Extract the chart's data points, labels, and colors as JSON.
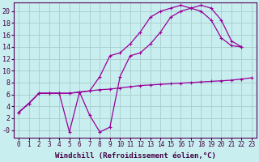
{
  "background_color": "#c8eef0",
  "grid_color": "#aacccc",
  "line_color": "#990099",
  "xlabel": "Windchill (Refroidissement éolien,°C)",
  "xlabel_fontsize": 6.5,
  "xtick_fontsize": 5.5,
  "ytick_fontsize": 6.0,
  "ylim": [
    -1.2,
    21.5
  ],
  "xlim": [
    -0.5,
    23.5
  ],
  "yticks": [
    0,
    2,
    4,
    6,
    8,
    10,
    12,
    14,
    16,
    18,
    20
  ],
  "ytick_labels": [
    "-0",
    "2",
    "4",
    "6",
    "8",
    "10",
    "12",
    "14",
    "16",
    "18",
    "20"
  ],
  "xticks": [
    0,
    1,
    2,
    3,
    4,
    5,
    6,
    7,
    8,
    9,
    10,
    11,
    12,
    13,
    14,
    15,
    16,
    17,
    18,
    19,
    20,
    21,
    22,
    23
  ],
  "line1_x": [
    0,
    1,
    2,
    3,
    4,
    5,
    6,
    7,
    8,
    9,
    10,
    11,
    12,
    13,
    14,
    15,
    16,
    17,
    18,
    19,
    20,
    21,
    22,
    23
  ],
  "line1_y": [
    3.0,
    4.5,
    6.2,
    6.2,
    6.2,
    6.2,
    6.4,
    6.6,
    6.8,
    6.9,
    7.1,
    7.3,
    7.5,
    7.6,
    7.7,
    7.8,
    7.9,
    8.0,
    8.1,
    8.2,
    8.3,
    8.4,
    8.6,
    8.8
  ],
  "line2_x": [
    0,
    1,
    2,
    3,
    4,
    5,
    6,
    7,
    8,
    9,
    10,
    11,
    12,
    13,
    14,
    15,
    16,
    17,
    18,
    19,
    20,
    21,
    22
  ],
  "line2_y": [
    3.0,
    4.5,
    6.2,
    6.2,
    6.2,
    6.2,
    6.4,
    6.6,
    9.0,
    12.5,
    13.0,
    14.5,
    16.5,
    19.0,
    20.0,
    20.5,
    21.0,
    20.5,
    20.0,
    18.5,
    15.5,
    14.2,
    14.0
  ],
  "line3_x": [
    0,
    1,
    2,
    3,
    4,
    5,
    6,
    7,
    8,
    9,
    10,
    11,
    12,
    13,
    14,
    15,
    16,
    17,
    18,
    19,
    20,
    21,
    22
  ],
  "line3_y": [
    3.0,
    4.5,
    6.2,
    6.2,
    6.2,
    -0.3,
    6.4,
    2.5,
    -0.3,
    0.5,
    9.0,
    12.5,
    13.0,
    14.5,
    16.5,
    19.0,
    20.0,
    20.5,
    21.0,
    20.5,
    18.5,
    15.0,
    14.0
  ],
  "marker": "+",
  "markersize": 3,
  "linewidth": 0.9
}
